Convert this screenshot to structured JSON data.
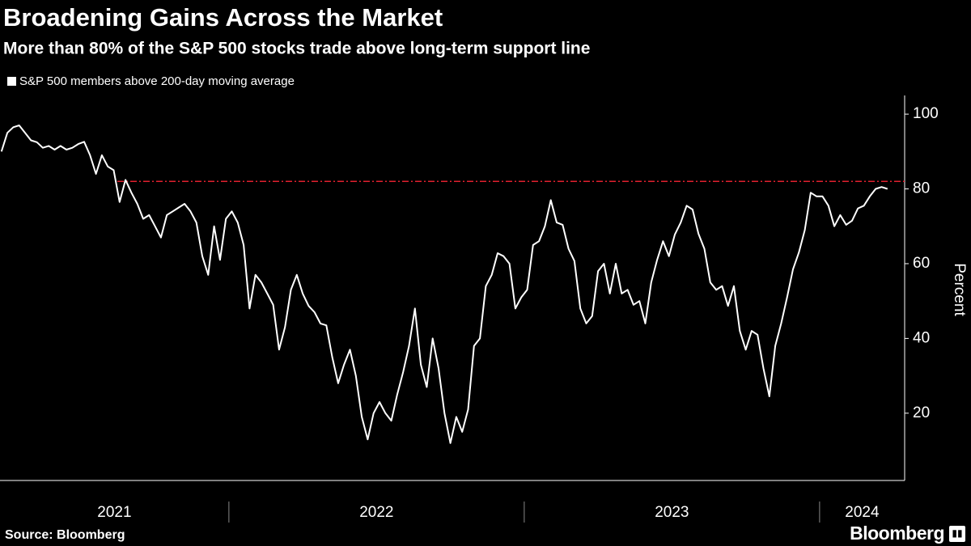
{
  "chart_data": {
    "type": "line",
    "title": "Broadening Gains Across the Market",
    "subtitle": "More than 80% of the S&P 500 stocks trade above long-term support line",
    "ylabel": "Percent",
    "source": "Source: Bloomberg",
    "brand": "Bloomberg",
    "xlim": [
      2021.225,
      2024.288
    ],
    "xticks": [
      2021,
      2022,
      2023,
      2024
    ],
    "ylim": [
      2,
      105
    ],
    "yticks": [
      20,
      40,
      60,
      80,
      100
    ],
    "y_axis_side": "right",
    "grid": false,
    "reference_line": {
      "value": 82,
      "color": "#e0202e"
    },
    "x": [
      2021.23,
      2021.25,
      2021.27,
      2021.29,
      2021.31,
      2021.33,
      2021.35,
      2021.37,
      2021.39,
      2021.41,
      2021.43,
      2021.45,
      2021.47,
      2021.49,
      2021.51,
      2021.53,
      2021.55,
      2021.57,
      2021.59,
      2021.61,
      2021.63,
      2021.65,
      2021.67,
      2021.69,
      2021.71,
      2021.73,
      2021.75,
      2021.77,
      2021.79,
      2021.81,
      2021.83,
      2021.85,
      2021.87,
      2021.89,
      2021.91,
      2021.93,
      2021.95,
      2021.97,
      2021.99,
      2022.01,
      2022.03,
      2022.05,
      2022.07,
      2022.09,
      2022.11,
      2022.13,
      2022.15,
      2022.17,
      2022.19,
      2022.21,
      2022.23,
      2022.25,
      2022.27,
      2022.29,
      2022.31,
      2022.33,
      2022.35,
      2022.37,
      2022.39,
      2022.41,
      2022.43,
      2022.45,
      2022.47,
      2022.49,
      2022.51,
      2022.53,
      2022.55,
      2022.57,
      2022.59,
      2022.61,
      2022.63,
      2022.65,
      2022.67,
      2022.69,
      2022.71,
      2022.73,
      2022.75,
      2022.77,
      2022.79,
      2022.81,
      2022.83,
      2022.85,
      2022.87,
      2022.89,
      2022.91,
      2022.93,
      2022.95,
      2022.97,
      2022.99,
      2023.01,
      2023.03,
      2023.05,
      2023.07,
      2023.09,
      2023.11,
      2023.13,
      2023.15,
      2023.17,
      2023.19,
      2023.21,
      2023.23,
      2023.25,
      2023.27,
      2023.29,
      2023.31,
      2023.33,
      2023.35,
      2023.37,
      2023.39,
      2023.41,
      2023.43,
      2023.45,
      2023.47,
      2023.49,
      2023.51,
      2023.53,
      2023.55,
      2023.57,
      2023.59,
      2023.61,
      2023.63,
      2023.65,
      2023.67,
      2023.69,
      2023.71,
      2023.73,
      2023.75,
      2023.77,
      2023.79,
      2023.81,
      2023.83,
      2023.85,
      2023.87,
      2023.89,
      2023.91,
      2023.93,
      2023.95,
      2023.97,
      2023.99,
      2024.01,
      2024.03,
      2024.05,
      2024.07,
      2024.09,
      2024.11,
      2024.13,
      2024.15,
      2024.17,
      2024.19,
      2024.21,
      2024.23
    ],
    "series": [
      {
        "name": "S&P 500 members above 200-day moving average",
        "color": "#ffffff",
        "values": [
          90,
          95,
          96.5,
          97,
          95,
          93,
          92.5,
          91,
          91.5,
          90.5,
          91.5,
          90.5,
          91,
          92,
          92.6,
          89,
          84,
          89,
          86,
          85,
          76.5,
          82.4,
          79,
          76,
          72,
          73,
          70,
          67,
          73,
          74,
          75,
          76,
          74,
          71,
          62,
          57,
          70,
          61,
          72,
          74,
          71,
          65,
          48,
          57,
          55,
          52,
          49,
          37,
          43,
          53,
          57,
          52,
          48.7,
          47,
          44,
          43.5,
          35,
          28,
          33,
          37,
          30,
          19,
          13,
          20,
          23,
          20,
          18,
          25,
          31,
          38,
          48,
          33,
          27,
          40,
          32,
          20,
          12,
          19,
          15,
          21,
          38,
          40,
          54,
          57,
          62.8,
          62,
          60,
          48,
          51,
          53,
          65,
          66,
          70,
          77,
          71,
          70.4,
          64,
          60.7,
          48,
          44,
          46,
          58,
          60,
          52,
          60,
          52,
          53,
          49,
          50,
          44,
          55,
          61,
          66,
          62,
          67.8,
          71,
          75.5,
          74.5,
          68,
          64,
          55,
          53,
          54,
          48.7,
          54,
          42,
          37,
          42,
          41,
          32,
          24.5,
          38,
          44,
          51,
          58.5,
          63,
          69,
          79,
          78,
          78,
          75.5,
          70,
          73,
          70.4,
          71.5,
          74.8,
          75.5,
          78,
          80,
          80.5,
          80
        ]
      }
    ]
  }
}
